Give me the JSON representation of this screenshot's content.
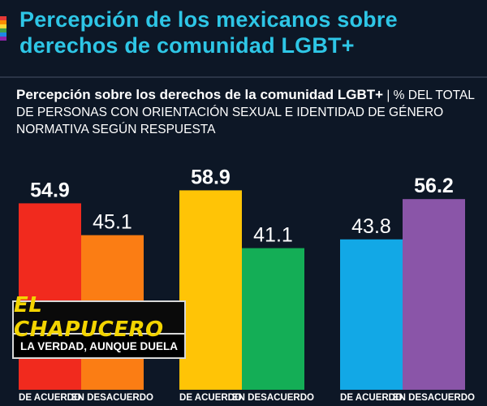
{
  "header": {
    "title": "Percepción de los mexicanos sobre derechos de comunidad LGBT+",
    "subtitle_bold": "Percepción sobre los derechos de la comunidad LGBT+",
    "subtitle_rest": " | % DEL TOTAL DE PERSONAS CON ORIENTACIÓN SEXUAL E IDENTIDAD DE GÉNERO NORMATIVA SEGÚN RESPUESTA",
    "rainbow_colors": [
      "#e53935",
      "#fb8c00",
      "#fdd835",
      "#43a047",
      "#1e88e5",
      "#8e24aa"
    ]
  },
  "watermark": {
    "name": "EL CHAPUCERO",
    "tagline": "LA VERDAD, AUNQUE DUELA"
  },
  "chart_data": {
    "type": "bar",
    "title": "Percepción sobre los derechos de la comunidad LGBT+",
    "categories": [
      "DE ACUERDO",
      "EN DESACUERDO"
    ],
    "groups": [
      {
        "values": [
          54.9,
          45.1
        ],
        "colors": [
          "#f12a1e",
          "#fb7d14"
        ]
      },
      {
        "values": [
          58.9,
          41.1
        ],
        "colors": [
          "#ffc406",
          "#14ae56"
        ]
      },
      {
        "values": [
          43.8,
          56.2
        ],
        "colors": [
          "#12a8e6",
          "#8a55a8"
        ]
      }
    ],
    "ylim": [
      0,
      100
    ],
    "label_color": "#ffffff"
  }
}
